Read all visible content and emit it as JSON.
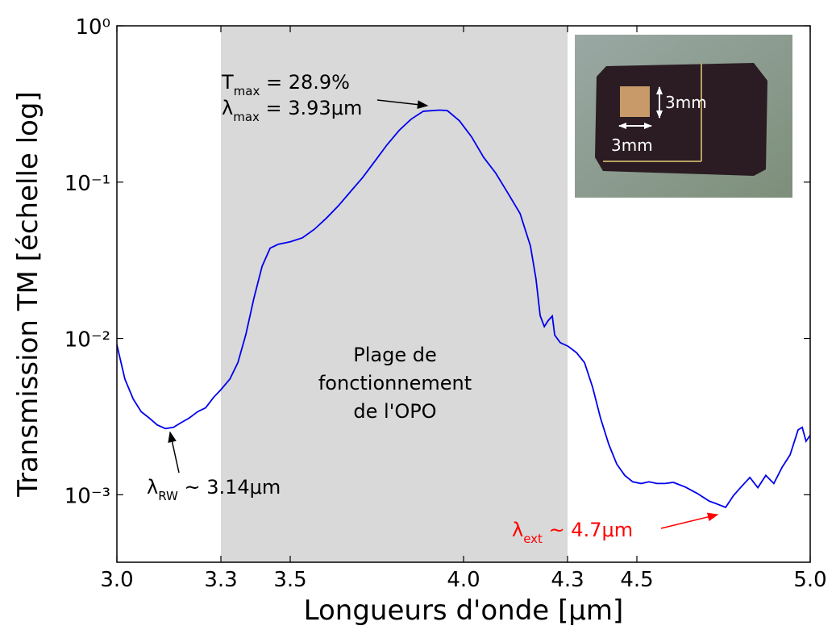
{
  "chart_data": {
    "type": "line",
    "xlabel": "Longueurs d'onde [μm]",
    "ylabel": "Transmission TM [échelle log]",
    "log_y": true,
    "color": "#0000ee",
    "shaded_range": [
      3.3,
      4.3
    ],
    "shaded_color": "#d9d9d9",
    "xlim": [
      3.0,
      5.0
    ],
    "ylim": [
      0.00037,
      1
    ],
    "xticks": [
      {
        "value": 3,
        "label": "3.0"
      },
      3.3,
      3.5,
      {
        "value": 4,
        "label": "4.0"
      },
      4.3,
      4.5,
      {
        "value": 5,
        "label": "5.0"
      }
    ],
    "yticks": [
      {
        "value": 1,
        "label": "10⁰"
      },
      {
        "value": 0.1,
        "label": "10⁻¹"
      },
      {
        "value": 0.01,
        "label": "10⁻²"
      },
      {
        "value": 0.001,
        "label": "10⁻³"
      }
    ],
    "x": [
      3.0,
      3.023,
      3.047,
      3.07,
      3.093,
      3.116,
      3.14,
      3.163,
      3.186,
      3.209,
      3.233,
      3.256,
      3.279,
      3.3,
      3.326,
      3.349,
      3.372,
      3.395,
      3.419,
      3.442,
      3.465,
      3.5,
      3.535,
      3.57,
      3.605,
      3.64,
      3.674,
      3.709,
      3.744,
      3.779,
      3.814,
      3.849,
      3.884,
      3.93,
      3.953,
      3.988,
      4.023,
      4.058,
      4.093,
      4.128,
      4.163,
      4.193,
      4.209,
      4.221,
      4.233,
      4.244,
      4.256,
      4.263,
      4.279,
      4.302,
      4.326,
      4.349,
      4.372,
      4.395,
      4.419,
      4.442,
      4.465,
      4.488,
      4.512,
      4.535,
      4.558,
      4.581,
      4.605,
      4.64,
      4.674,
      4.709,
      4.733,
      4.756,
      4.779,
      4.802,
      4.826,
      4.849,
      4.872,
      4.895,
      4.919,
      4.942,
      4.965,
      4.977,
      4.988,
      5.0
    ],
    "values": [
      0.0091,
      0.0055,
      0.0041,
      0.0034,
      0.0031,
      0.0028,
      0.00265,
      0.0027,
      0.0029,
      0.0031,
      0.0034,
      0.0036,
      0.0042,
      0.0047,
      0.0055,
      0.007,
      0.0106,
      0.018,
      0.029,
      0.0378,
      0.04,
      0.0415,
      0.044,
      0.05,
      0.059,
      0.071,
      0.087,
      0.107,
      0.136,
      0.173,
      0.214,
      0.253,
      0.284,
      0.289,
      0.287,
      0.247,
      0.195,
      0.144,
      0.114,
      0.085,
      0.063,
      0.039,
      0.024,
      0.014,
      0.0119,
      0.013,
      0.0139,
      0.0105,
      0.0094,
      0.0089,
      0.0081,
      0.007,
      0.0049,
      0.0031,
      0.0021,
      0.00157,
      0.00133,
      0.00121,
      0.00118,
      0.00121,
      0.00118,
      0.00118,
      0.0012,
      0.00112,
      0.00102,
      0.00091,
      0.00087,
      0.00083,
      0.00099,
      0.00113,
      0.00129,
      0.00111,
      0.00133,
      0.00118,
      0.0015,
      0.0018,
      0.0026,
      0.0027,
      0.0022,
      0.0024
    ],
    "annotations": {
      "tmax": {
        "symbol": "T",
        "subscript": "max",
        "text": " = 28.9%"
      },
      "lmax": {
        "symbol": "λ",
        "subscript": "max",
        "text": " = 3.93μm"
      },
      "range": [
        "Plage de",
        "fonctionnement",
        "de l'OPO"
      ],
      "lrw": {
        "symbol": "λ",
        "subscript": "RW",
        "text": " ~ 3.14μm"
      },
      "lext": {
        "symbol": "λ",
        "subscript": "ext",
        "text": " ~ 4.7μm"
      },
      "inset_height": "3mm",
      "inset_width": "3mm"
    }
  }
}
